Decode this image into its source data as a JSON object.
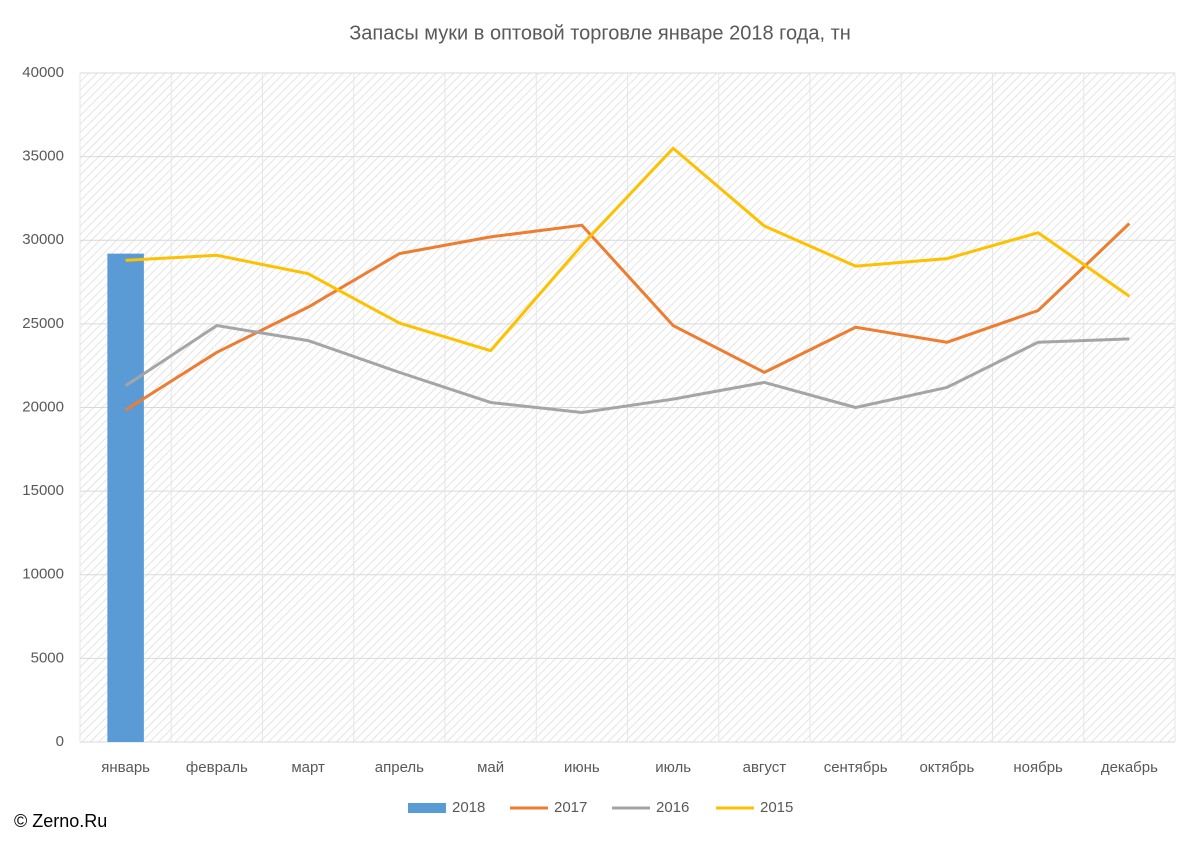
{
  "chart_data": {
    "type": "line",
    "title": "Запасы муки в оптовой торговле январе 2018 года, тн",
    "source": "© Zerno.Ru",
    "categories": [
      "январь",
      "февраль",
      "март",
      "апрель",
      "май",
      "июнь",
      "июль",
      "август",
      "сентябрь",
      "октябрь",
      "ноябрь",
      "декабрь"
    ],
    "series": [
      {
        "name": "2018",
        "type": "bar",
        "color": "#5b9bd5",
        "values": [
          29200,
          null,
          null,
          null,
          null,
          null,
          null,
          null,
          null,
          null,
          null,
          null
        ]
      },
      {
        "name": "2017",
        "type": "line",
        "color": "#ed7d31",
        "values": [
          19850,
          23300,
          26000,
          29200,
          30200,
          30900,
          24900,
          22100,
          24800,
          23900,
          25800,
          31000
        ]
      },
      {
        "name": "2016",
        "type": "line",
        "color": "#a5a5a5",
        "values": [
          21300,
          24900,
          24000,
          22100,
          20300,
          19700,
          20500,
          21500,
          20000,
          21200,
          23900,
          24100
        ]
      },
      {
        "name": "2015",
        "type": "line",
        "color": "#ffc000",
        "values": [
          28800,
          29100,
          28000,
          25050,
          23400,
          29700,
          35500,
          30850,
          28450,
          28900,
          30450,
          26650
        ]
      }
    ],
    "ylim": [
      0,
      40000
    ],
    "yticks": [
      0,
      5000,
      10000,
      15000,
      20000,
      25000,
      30000,
      35000,
      40000
    ],
    "grid": true,
    "legend": "bottom"
  }
}
